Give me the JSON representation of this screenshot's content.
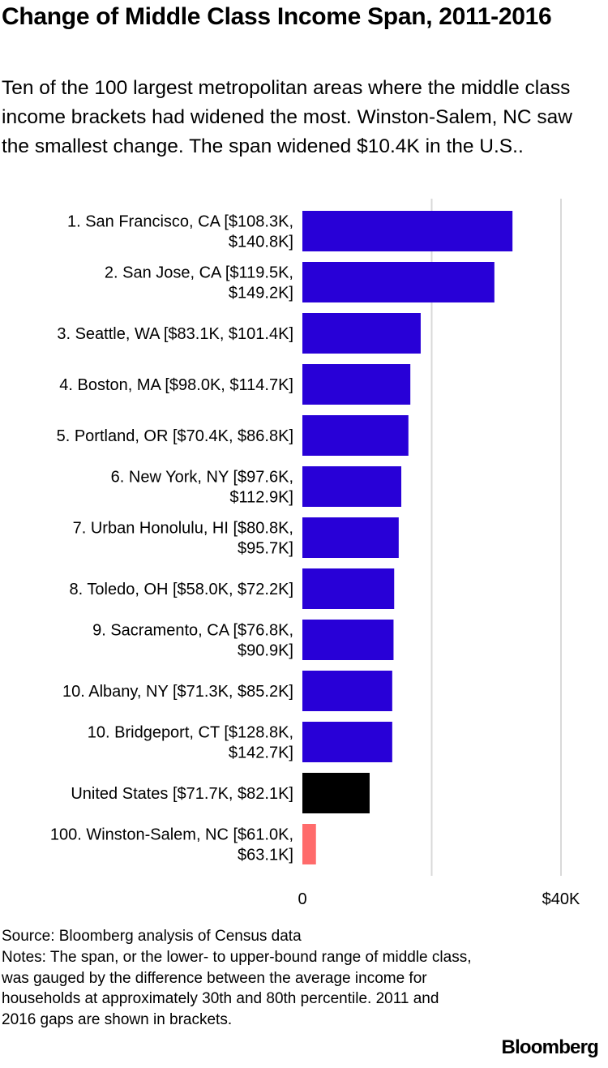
{
  "header": {
    "title": "Change of Middle Class Income Span, 2011-2016",
    "subtitle": "Ten of the 100 largest metropolitan areas where the middle class income brackets had widened the most. Winston-Salem, NC saw the smallest change. The span widened $10.4K in the U.S.."
  },
  "chart_data": {
    "type": "bar",
    "orientation": "horizontal",
    "title": "Change of Middle Class Income Span, 2011-2016",
    "xlabel": "",
    "ylabel": "",
    "xlim": [
      0,
      40000
    ],
    "x_ticks": [
      {
        "value": 0,
        "label": "0"
      },
      {
        "value": 20000,
        "label": ""
      },
      {
        "value": 40000,
        "label": "$40K"
      }
    ],
    "categories": [
      [
        "1. San Francisco, CA [$108.3K,",
        "$140.8K]"
      ],
      [
        "2. San Jose, CA [$119.5K,",
        "$149.2K]"
      ],
      [
        "3. Seattle, WA [$83.1K, $101.4K]"
      ],
      [
        "4. Boston, MA [$98.0K, $114.7K]"
      ],
      [
        "5. Portland, OR [$70.4K, $86.8K]"
      ],
      [
        "6. New York, NY [$97.6K,",
        "$112.9K]"
      ],
      [
        "7. Urban Honolulu, HI [$80.8K,",
        "$95.7K]"
      ],
      [
        "8. Toledo, OH [$58.0K, $72.2K]"
      ],
      [
        "9. Sacramento, CA [$76.8K,",
        "$90.9K]"
      ],
      [
        "10. Albany, NY [$71.3K, $85.2K]"
      ],
      [
        "10. Bridgeport, CT [$128.8K,",
        "$142.7K]"
      ],
      [
        "United States [$71.7K, $82.1K]"
      ],
      [
        "100. Winston-Salem, NC [$61.0K,",
        "$63.1K]"
      ]
    ],
    "values": [
      32500,
      29700,
      18300,
      16700,
      16400,
      15300,
      14900,
      14200,
      14100,
      13900,
      13900,
      10400,
      2100
    ],
    "colors": [
      "#2800d7",
      "#2800d7",
      "#2800d7",
      "#2800d7",
      "#2800d7",
      "#2800d7",
      "#2800d7",
      "#2800d7",
      "#2800d7",
      "#2800d7",
      "#2800d7",
      "#000000",
      "#ff6b6b"
    ],
    "grid": true
  },
  "footer": {
    "source": "Source: Bloomberg analysis of Census data",
    "notes": "Notes: The span, or the lower- to upper-bound range of middle class, was gauged by the difference between the average income for households at approximately 30th and 80th percentile. 2011 and 2016 gaps are shown in brackets.",
    "brand": "Bloomberg"
  }
}
